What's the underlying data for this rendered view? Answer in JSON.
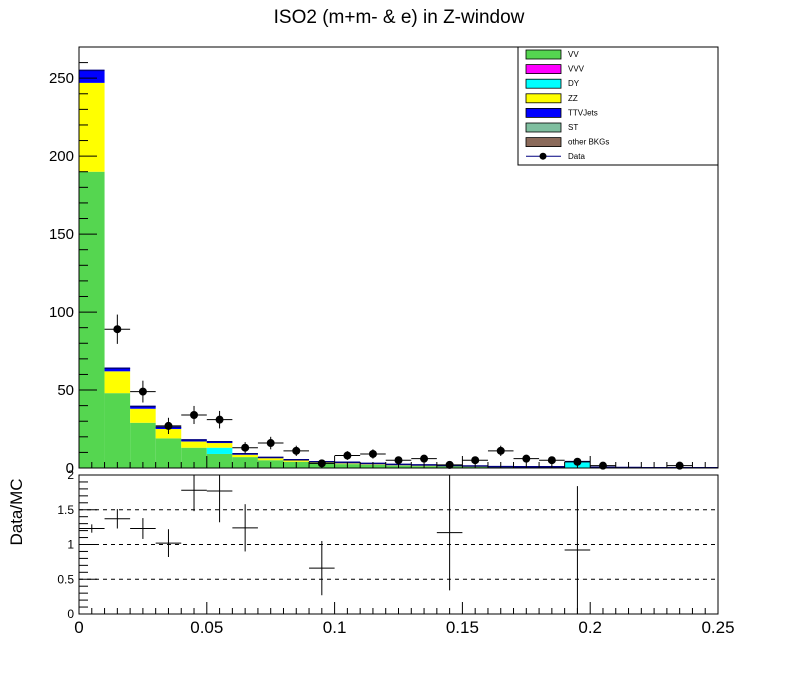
{
  "chart_data": [
    {
      "type": "stacked-histogram",
      "title": "ISO2 (m+m- & e) in Z-window",
      "xlabel": "",
      "ylabel": "",
      "xlim": [
        0,
        0.25
      ],
      "ylim": [
        0,
        270
      ],
      "y_ticks": [
        "0",
        "50",
        "100",
        "150",
        "200",
        "250"
      ],
      "bin_edges": [
        0,
        0.01,
        0.02,
        0.03,
        0.04,
        0.05,
        0.06,
        0.07,
        0.08,
        0.09,
        0.1,
        0.11,
        0.12,
        0.13,
        0.14,
        0.15,
        0.16,
        0.17,
        0.18,
        0.19,
        0.2,
        0.21,
        0.22,
        0.23,
        0.24,
        0.25
      ],
      "series": [
        {
          "name": "VV",
          "color": "#55d650",
          "values": [
            190,
            48,
            29,
            19,
            13,
            9,
            7,
            5,
            4,
            3,
            2.5,
            2,
            1.5,
            1.2,
            1.0,
            0.8,
            0.6,
            0.5,
            0.5,
            0.3,
            0.3,
            0.2,
            0.1,
            0.1,
            0.1
          ]
        },
        {
          "name": "VVV",
          "color": "#ff00ff",
          "values": [
            0,
            0,
            0,
            0,
            0,
            0,
            0,
            0,
            0,
            0,
            0,
            0,
            0,
            0,
            0,
            0,
            0,
            0,
            0,
            0,
            0,
            0,
            0,
            0,
            0
          ]
        },
        {
          "name": "DY",
          "color": "#00ffff",
          "values": [
            0,
            0,
            0,
            0,
            0,
            4,
            0,
            0,
            0,
            0,
            0,
            0,
            0,
            0,
            0,
            0,
            0,
            0,
            0,
            3.5,
            0,
            0,
            0,
            0,
            0
          ]
        },
        {
          "name": "ZZ",
          "color": "#ffff00",
          "values": [
            57,
            14,
            9,
            6,
            4,
            3,
            1.5,
            1.3,
            0.8,
            0.6,
            0.5,
            0.4,
            0.3,
            0.3,
            0.2,
            0.2,
            0.1,
            0.1,
            0.1,
            0.1,
            0.05,
            0.05,
            0.03,
            0.03,
            0.02
          ]
        },
        {
          "name": "TTVJets",
          "color": "#0000ff",
          "values": [
            8,
            2,
            1.5,
            1.2,
            1,
            0.8,
            0.6,
            0.5,
            0.5,
            0.4,
            0.7,
            0.6,
            0.5,
            0.5,
            0.4,
            0.3,
            0.2,
            0.2,
            0.2,
            0.2,
            0.1,
            0.1,
            0.05,
            0.05,
            0.05
          ]
        },
        {
          "name": "ST",
          "color": "#7fbfa0",
          "values": [
            0,
            0,
            0,
            0,
            0,
            0,
            0,
            0,
            0,
            0,
            0,
            0,
            0,
            0,
            0,
            0,
            0,
            0,
            0,
            0,
            0,
            0,
            0,
            0,
            0
          ]
        },
        {
          "name": "other BKGs",
          "color": "#8b6a5a",
          "values": [
            0,
            0,
            0,
            0,
            0,
            0,
            0,
            0,
            0,
            0,
            0,
            0,
            0,
            0,
            0,
            0,
            0,
            0,
            0,
            0,
            0,
            0,
            0,
            0,
            0
          ]
        }
      ],
      "data_points": {
        "name": "Data",
        "x": [
          0.015,
          0.025,
          0.035,
          0.045,
          0.055,
          0.065,
          0.075,
          0.085,
          0.095,
          0.105,
          0.115,
          0.125,
          0.135,
          0.145,
          0.155,
          0.165,
          0.175,
          0.185,
          0.195,
          0.205,
          0.235
        ],
        "y": [
          89,
          49,
          27,
          34,
          31,
          13,
          16,
          11,
          3,
          8,
          9,
          5,
          6,
          2,
          5,
          11,
          6,
          5,
          4,
          1.5,
          1.5
        ],
        "yerr": [
          9.4,
          7.0,
          5.2,
          5.8,
          5.6,
          3.6,
          4.0,
          3.3,
          1.7,
          2.8,
          3.0,
          2.2,
          2.4,
          1.4,
          2.2,
          3.3,
          2.4,
          2.2,
          2.0,
          1.2,
          1.2
        ]
      },
      "legend": {
        "position": "top-right",
        "entries": [
          "VV",
          "VVV",
          "DY",
          "ZZ",
          "TTVJets",
          "ST",
          "other BKGs",
          "Data"
        ]
      }
    },
    {
      "type": "ratio",
      "ylabel": "Data/MC",
      "xlim": [
        0,
        0.25
      ],
      "ylim": [
        0,
        2
      ],
      "x_ticks": [
        "0",
        "0.05",
        "0.1",
        "0.15",
        "0.2",
        "0.25"
      ],
      "y_ticks": [
        "0",
        "0.5",
        "1",
        "1.5",
        "2"
      ],
      "reference_lines": [
        0.5,
        1.0,
        1.5
      ],
      "points": {
        "x": [
          0.005,
          0.015,
          0.025,
          0.035,
          0.045,
          0.055,
          0.065,
          0.095,
          0.145,
          0.195
        ],
        "y": [
          1.23,
          1.37,
          1.23,
          1.02,
          1.78,
          1.77,
          1.24,
          0.66,
          1.17,
          0.92
        ],
        "yerr": [
          0.06,
          0.14,
          0.15,
          0.2,
          0.3,
          0.45,
          0.34,
          0.39,
          0.83,
          0.92
        ]
      }
    }
  ]
}
